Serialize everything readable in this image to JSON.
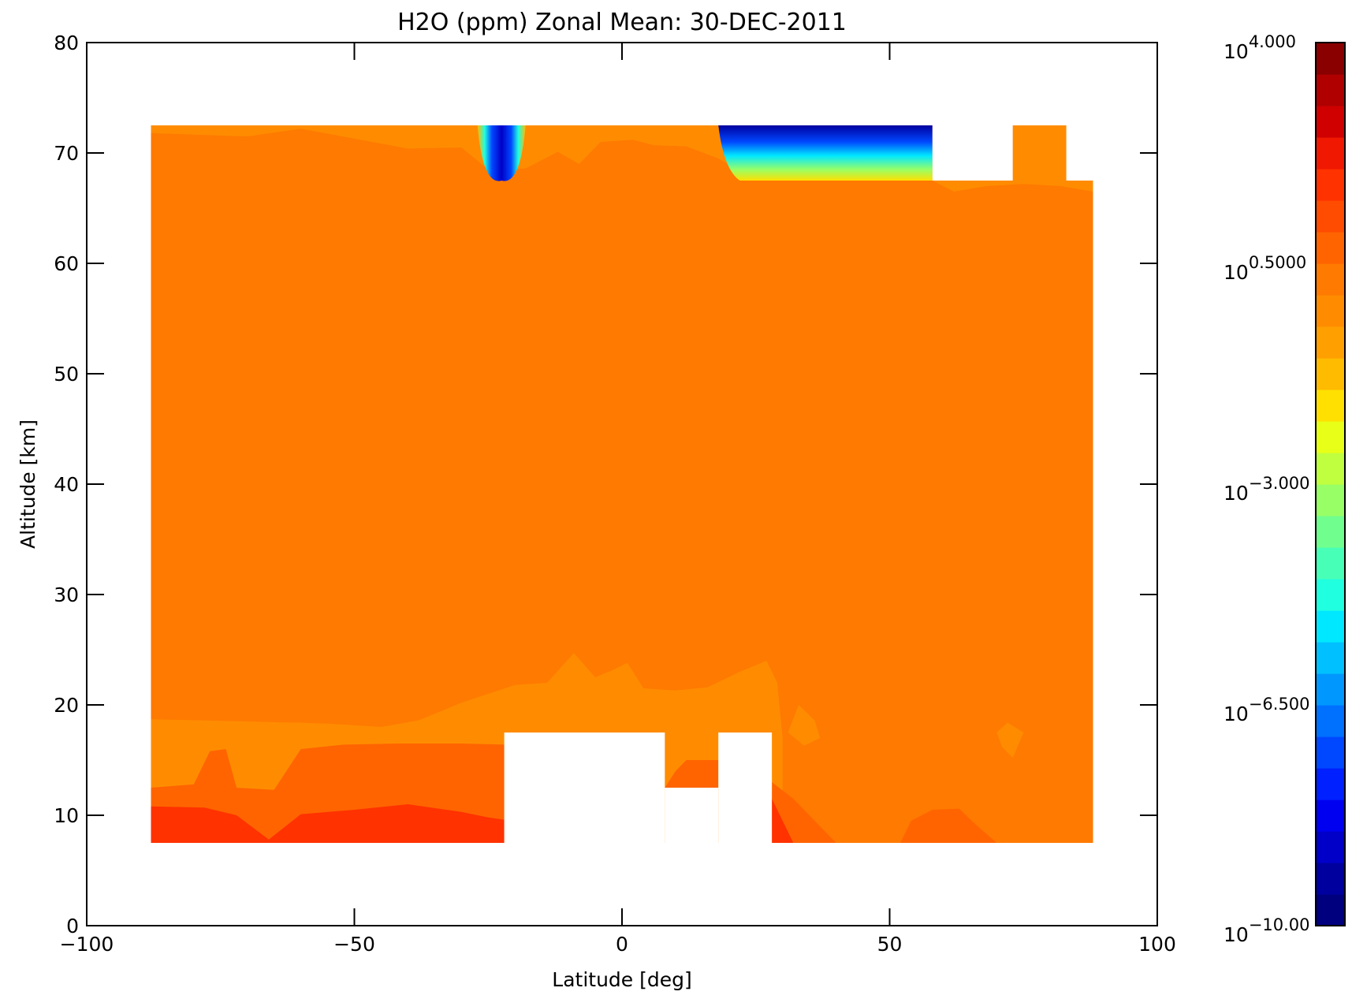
{
  "chart_data": {
    "type": "heatmap",
    "title": "H2O (ppm) Zonal Mean: 30-DEC-2011",
    "xlabel": "Latitude [deg]",
    "ylabel": "Altitude [km]",
    "xlim": [
      -100,
      100
    ],
    "ylim": [
      0,
      80
    ],
    "x_ticks": [
      -100,
      -50,
      0,
      50,
      100
    ],
    "y_ticks": [
      0,
      10,
      20,
      30,
      40,
      50,
      60,
      70,
      80
    ],
    "x_tick_labels": [
      "−100",
      "−50",
      "0",
      "50",
      "100"
    ],
    "y_tick_labels": [
      "0",
      "10",
      "20",
      "30",
      "40",
      "50",
      "60",
      "70",
      "80"
    ],
    "colorbar": {
      "scale": "log",
      "log10_range": [
        -10,
        4
      ],
      "tick_log10": [
        -10,
        -6.5,
        -3,
        0.5,
        4
      ],
      "tick_labels": [
        {
          "base": "10",
          "exp": "4.000"
        },
        {
          "base": "10",
          "exp": "0.5000"
        },
        {
          "base": "10",
          "exp": "−3.000"
        },
        {
          "base": "10",
          "exp": "−6.500"
        },
        {
          "base": "10",
          "exp": "−10.00"
        }
      ],
      "colors": [
        "#00007F",
        "#00009F",
        "#0000C8",
        "#0000F0",
        "#0020FF",
        "#0048FF",
        "#0070FF",
        "#0098FF",
        "#00C0FF",
        "#00E8FF",
        "#20FFDF",
        "#48FFB7",
        "#70FF8F",
        "#98FF67",
        "#C0FF3F",
        "#E8FF17",
        "#FFE000",
        "#FFBB00",
        "#FFA000",
        "#FF8C00",
        "#FF7A00",
        "#FF6400",
        "#FF4C00",
        "#FF3200",
        "#F01800",
        "#D00000",
        "#B00000",
        "#8A0000"
      ]
    },
    "coverage": {
      "lat_range": [
        -88,
        88
      ],
      "alt_range": [
        7.5,
        72.5
      ]
    },
    "regions": [
      {
        "label": "background",
        "log10_value": 0.42,
        "color": "#FF7A00"
      },
      {
        "label": "lower layer",
        "log10_value": 0.6,
        "color": "#FF8C00"
      },
      {
        "label": "tropopause layer",
        "log10_value": 0.9,
        "color": "#FF6400"
      },
      {
        "label": "lowest layer",
        "log10_value": 1.2,
        "color": "#FF3200"
      },
      {
        "label": "mesosphere low values",
        "log10_value": -9.0,
        "color": "#0000C8"
      }
    ],
    "missing_regions": [
      {
        "lat": [
          -22,
          8
        ],
        "alt": [
          0,
          17.5
        ]
      },
      {
        "lat": [
          8,
          18
        ],
        "alt": [
          0,
          12.5
        ]
      },
      {
        "lat": [
          18,
          28
        ],
        "alt": [
          0,
          17.5
        ]
      },
      {
        "lat": [
          58,
          73
        ],
        "alt": [
          67.5,
          80
        ]
      },
      {
        "lat": [
          83,
          88
        ],
        "alt": [
          67.5,
          80
        ]
      }
    ]
  }
}
